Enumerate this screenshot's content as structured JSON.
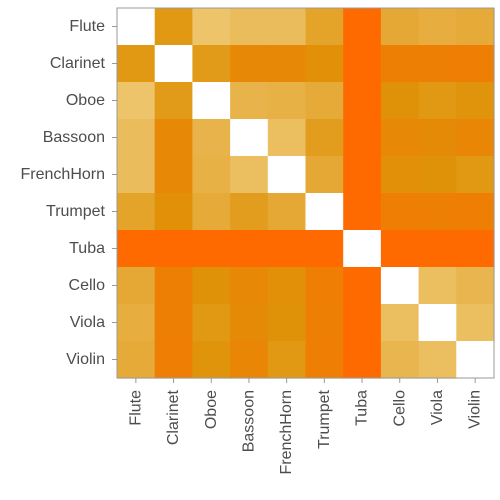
{
  "chart_data": {
    "type": "heatmap",
    "title": "",
    "xlabel": "",
    "ylabel": "",
    "categories": [
      "Flute",
      "Clarinet",
      "Oboe",
      "Bassoon",
      "FrenchHorn",
      "Trumpet",
      "Tuba",
      "Cello",
      "Viola",
      "Violin"
    ],
    "diagonal": "blank",
    "value_scale": "0 = pale yellow (most similar), 1 = deep orange (least similar); values estimated from color",
    "values": [
      [
        null,
        0.55,
        0.15,
        0.22,
        0.22,
        0.45,
        1.0,
        0.4,
        0.35,
        0.38
      ],
      [
        0.55,
        null,
        0.52,
        0.7,
        0.7,
        0.62,
        1.0,
        0.78,
        0.78,
        0.8
      ],
      [
        0.15,
        0.52,
        null,
        0.3,
        0.32,
        0.38,
        1.0,
        0.6,
        0.55,
        0.58
      ],
      [
        0.22,
        0.7,
        0.3,
        null,
        0.2,
        0.5,
        1.0,
        0.7,
        0.68,
        0.72
      ],
      [
        0.22,
        0.7,
        0.32,
        0.2,
        null,
        0.4,
        1.0,
        0.62,
        0.6,
        0.55
      ],
      [
        0.45,
        0.62,
        0.38,
        0.5,
        0.4,
        null,
        1.0,
        0.8,
        0.78,
        0.8
      ],
      [
        1.0,
        1.0,
        1.0,
        1.0,
        1.0,
        1.0,
        null,
        1.0,
        1.0,
        1.0
      ],
      [
        0.4,
        0.78,
        0.6,
        0.7,
        0.62,
        0.8,
        1.0,
        null,
        0.2,
        0.28
      ],
      [
        0.35,
        0.78,
        0.55,
        0.68,
        0.6,
        0.78,
        1.0,
        0.2,
        null,
        0.2
      ],
      [
        0.38,
        0.8,
        0.58,
        0.72,
        0.55,
        0.8,
        1.0,
        0.28,
        0.2,
        null
      ]
    ]
  },
  "colors": {
    "low": "#f1d48b",
    "mid": "#df9208",
    "high": "#ff6a00",
    "diagonal": "#ffffff",
    "frame": "#999999",
    "tick_text": "#4d4d4d"
  }
}
